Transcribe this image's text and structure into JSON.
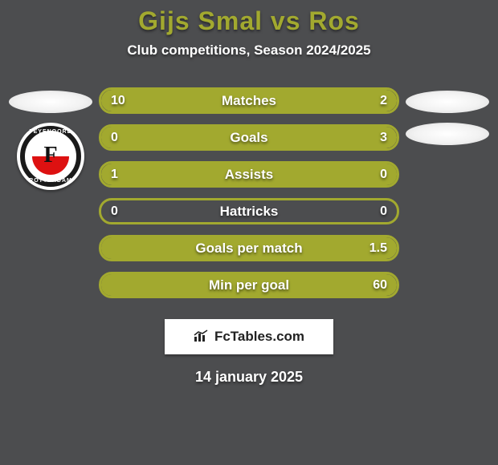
{
  "colors": {
    "background": "#4c4d4f",
    "title": "#a2a92f",
    "bar_border": "#a2a92f",
    "bar_fill": "#a2a92f",
    "left_badge_ring": "#1a1a1a"
  },
  "title": "Gijs Smal vs Ros",
  "subtitle": "Club competitions, Season 2024/2025",
  "left_club": {
    "name_top": "FEYENOORD",
    "name_bottom": "ROTTERDAM",
    "letter": "F"
  },
  "bars": [
    {
      "label": "Matches",
      "left": "10",
      "right": "2",
      "left_pct": 83,
      "right_pct": 17
    },
    {
      "label": "Goals",
      "left": "0",
      "right": "3",
      "left_pct": 0,
      "right_pct": 100
    },
    {
      "label": "Assists",
      "left": "1",
      "right": "0",
      "left_pct": 100,
      "right_pct": 0
    },
    {
      "label": "Hattricks",
      "left": "0",
      "right": "0",
      "left_pct": 0,
      "right_pct": 0
    },
    {
      "label": "Goals per match",
      "left": "",
      "right": "1.5",
      "left_pct": 0,
      "right_pct": 100
    },
    {
      "label": "Min per goal",
      "left": "",
      "right": "60",
      "left_pct": 0,
      "right_pct": 100
    }
  ],
  "footer": {
    "site": "FcTables.com"
  },
  "date": "14 january 2025"
}
